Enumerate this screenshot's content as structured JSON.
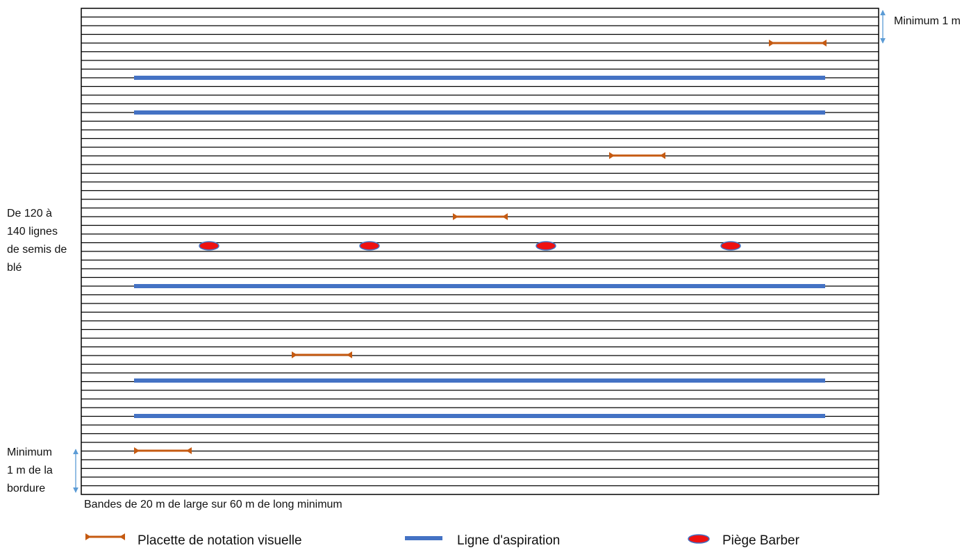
{
  "diagram": {
    "top_right_label": "Minimum 1 m",
    "left_label": {
      "lines": [
        "De 120 à",
        "140 lignes",
        "de semis de",
        "blé"
      ]
    },
    "bottom_left_label": {
      "lines": [
        "Minimum",
        "1 m de la",
        "bordure"
      ]
    },
    "caption": "Bandes de 20 m de large sur 60 m de long minimum"
  },
  "legend": [
    {
      "label": "Placette de notation visuelle"
    },
    {
      "label": "Ligne d'aspiration"
    },
    {
      "label": "Piège Barber"
    }
  ]
}
